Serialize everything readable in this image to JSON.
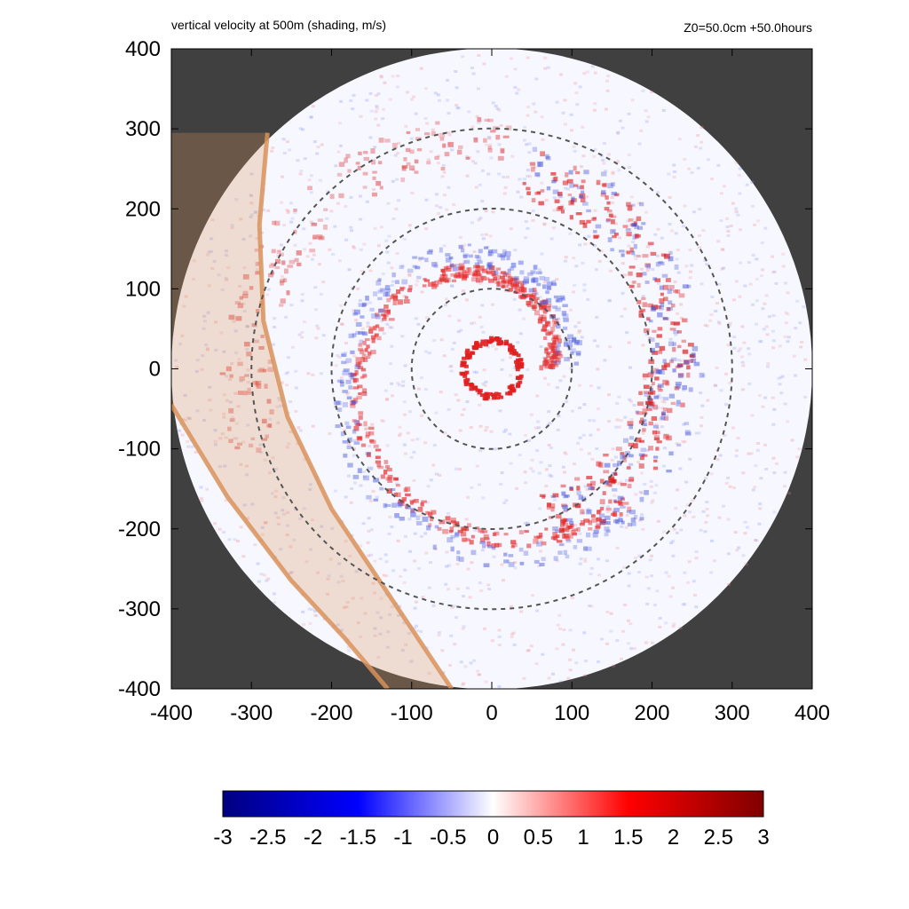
{
  "chart_data": {
    "type": "heatmap",
    "title": "vertical velocity at 500m (shading, m/s)",
    "subtitle": "Z0=50.0cm  +50.0hours",
    "xlim": [
      -400,
      400
    ],
    "ylim": [
      -400,
      400
    ],
    "x_ticks": [
      -400,
      -300,
      -200,
      -100,
      0,
      100,
      200,
      300,
      400
    ],
    "y_ticks": [
      -400,
      -300,
      -200,
      -100,
      0,
      100,
      200,
      300,
      400
    ],
    "x_tick_labels": [
      "-400",
      "-300",
      "-200",
      "-100",
      "0",
      "100",
      "200",
      "300",
      "400"
    ],
    "y_tick_labels": [
      "400",
      "300",
      "200",
      "100",
      "0",
      "-100",
      "-200",
      "-300",
      "-400"
    ],
    "domain_radius": 400,
    "dashed_circle_radii": [
      100,
      200,
      300
    ],
    "eyewall_radius_approx": 35,
    "colorbar": {
      "min": -3,
      "max": 3,
      "tick_labels": [
        "-3",
        "-2.5",
        "-2",
        "-1.5",
        "-1",
        "-0.5",
        "0",
        "0.5",
        "1",
        "1.5",
        "2",
        "2.5",
        "3"
      ],
      "colors": [
        "#000080",
        "#0000ff",
        "#ffffff",
        "#ff0000",
        "#800000"
      ]
    },
    "shaded_region": {
      "inner_boundary": [
        [
          -280,
          295
        ],
        [
          -290,
          180
        ],
        [
          -285,
          60
        ],
        [
          -255,
          -60
        ],
        [
          -200,
          -175
        ],
        [
          -130,
          -280
        ],
        [
          -50,
          -400
        ]
      ],
      "outer_boundary": [
        [
          -400,
          -45
        ],
        [
          -330,
          -160
        ],
        [
          -250,
          -265
        ],
        [
          -185,
          -335
        ],
        [
          -130,
          -400
        ]
      ],
      "color": "#d9925a"
    },
    "colors": {
      "background": "#404040",
      "dashed_circle": "#555555"
    }
  }
}
